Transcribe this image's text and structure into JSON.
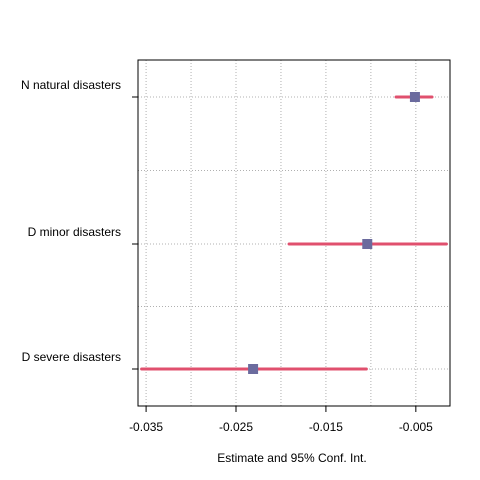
{
  "chart_data": {
    "type": "scatter",
    "subtype": "coefficient-plot",
    "title": "",
    "xlabel": "Estimate and 95% Conf. Int.",
    "ylabel": "",
    "xlim": [
      -0.0359,
      -0.0012
    ],
    "x_ticks": [
      -0.035,
      -0.025,
      -0.015,
      -0.005
    ],
    "x_tick_labels": [
      "-0.035",
      "-0.025",
      "-0.015",
      "-0.005"
    ],
    "grid": true,
    "categories": [
      "N natural disasters",
      "D minor disasters",
      "D severe disasters"
    ],
    "estimates": [
      -0.0051,
      -0.0104,
      -0.0231
    ],
    "ci_low": [
      -0.0072,
      -0.0191,
      -0.0355
    ],
    "ci_high": [
      -0.0032,
      -0.0016,
      -0.0105
    ],
    "colors": {
      "point": "#6b6b9e",
      "interval": "#e0506e",
      "grid": "#b0b0b0"
    }
  }
}
